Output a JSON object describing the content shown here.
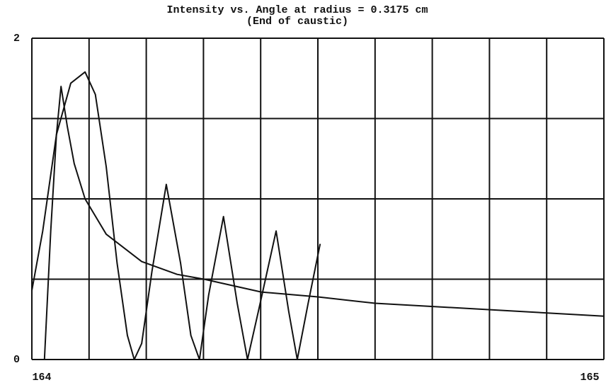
{
  "chart_data": {
    "type": "line",
    "title": "Intensity vs. Angle at radius = 0.3175 cm",
    "subtitle": "(End of caustic)",
    "xlim": [
      164,
      165
    ],
    "xticks": [
      164,
      165
    ],
    "ylim": [
      0,
      2
    ],
    "yticks": [
      0,
      2
    ],
    "xgrid": [
      164,
      164.1,
      164.2,
      164.3,
      164.4,
      164.5,
      164.6,
      164.7,
      164.8,
      164.9,
      165
    ],
    "ygrid": [
      0,
      0.5,
      1,
      1.5,
      2
    ],
    "series": [
      {
        "color": "#111111",
        "x": [
          164.0,
          164.019,
          164.043,
          164.068,
          164.093,
          164.111,
          164.13,
          164.149,
          164.167,
          164.179,
          164.192,
          164.21,
          164.235,
          164.26,
          164.278,
          164.293,
          164.309,
          164.335,
          164.359,
          164.377,
          164.396,
          164.427,
          164.449,
          164.464,
          164.483,
          164.504
        ],
        "values": [
          0.43,
          0.8,
          1.4,
          1.72,
          1.79,
          1.65,
          1.2,
          0.6,
          0.15,
          0.0,
          0.1,
          0.55,
          1.09,
          0.6,
          0.15,
          0.0,
          0.4,
          0.89,
          0.35,
          0.0,
          0.3,
          0.8,
          0.3,
          0.0,
          0.35,
          0.72
        ]
      },
      {
        "color": "#111111",
        "x": [
          164.022,
          164.033,
          164.043,
          164.051,
          164.062,
          164.074,
          164.093,
          164.13,
          164.192,
          164.254,
          164.301,
          164.401,
          164.5,
          164.6,
          164.801,
          165.0
        ],
        "values": [
          0,
          0.8,
          1.4,
          1.7,
          1.45,
          1.22,
          1.0,
          0.78,
          0.61,
          0.53,
          0.5,
          0.42,
          0.39,
          0.35,
          0.31,
          0.27
        ]
      }
    ]
  }
}
